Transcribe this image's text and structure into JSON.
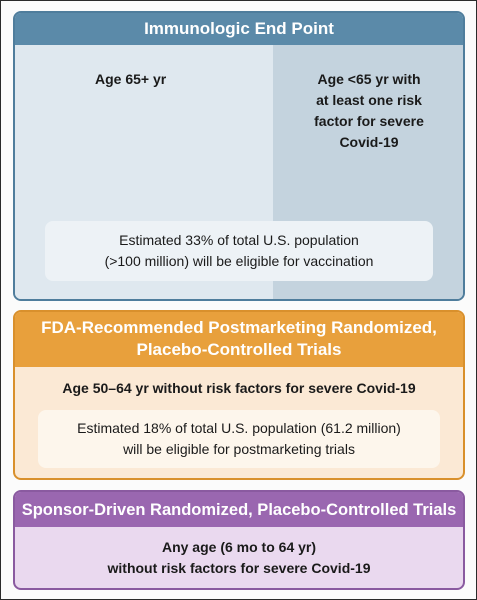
{
  "panels": {
    "immunologic": {
      "title": "Immunologic End Point",
      "left_label": "Age 65+ yr",
      "right_label": [
        "Age <65 yr with",
        "at least one risk",
        "factor for severe",
        "Covid-19"
      ],
      "note": [
        "Estimated 33% of total U.S. population",
        "(>100 million) will be eligible for vaccination"
      ],
      "color": "#5b8aa9"
    },
    "fda": {
      "title": [
        "FDA-Recommended Postmarketing Randomized,",
        "Placebo-Controlled Trials"
      ],
      "label": "Age 50–64 yr without risk factors for severe Covid-19",
      "note": [
        "Estimated 18% of total U.S. population (61.2 million)",
        "will be eligible for postmarketing trials"
      ],
      "color": "#e8a03c"
    },
    "sponsor": {
      "title": "Sponsor-Driven Randomized, Placebo-Controlled Trials",
      "label": [
        "Any age (6 mo to 64 yr)",
        "without risk factors for severe Covid-19"
      ],
      "color": "#9a67b0"
    }
  }
}
